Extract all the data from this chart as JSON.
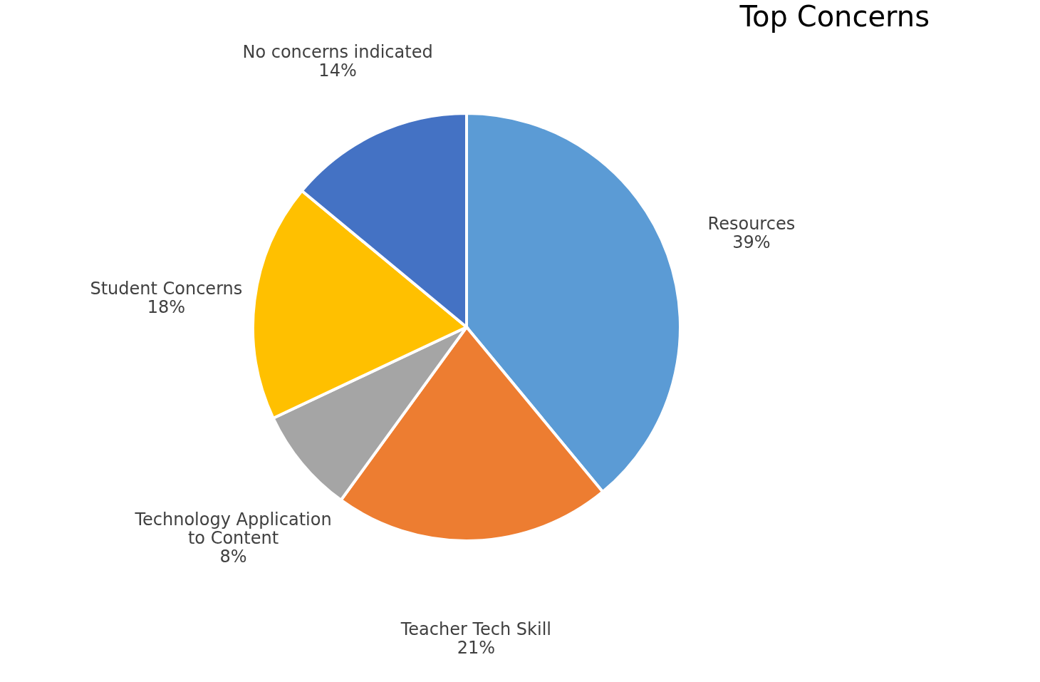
{
  "chart_data": {
    "type": "pie",
    "title": "Top Concerns",
    "categories": [
      "Resources",
      "Teacher Tech Skill",
      "Technology Application to Content",
      "Student Concerns",
      "No concerns indicated"
    ],
    "values": [
      39,
      21,
      8,
      18,
      14
    ],
    "value_labels": [
      "39%",
      "21%",
      "8%",
      "18%",
      "14%"
    ],
    "colors": [
      "#5b9bd5",
      "#ed7d31",
      "#a5a5a5",
      "#ffc000",
      "#4472c4"
    ],
    "legend": false
  }
}
